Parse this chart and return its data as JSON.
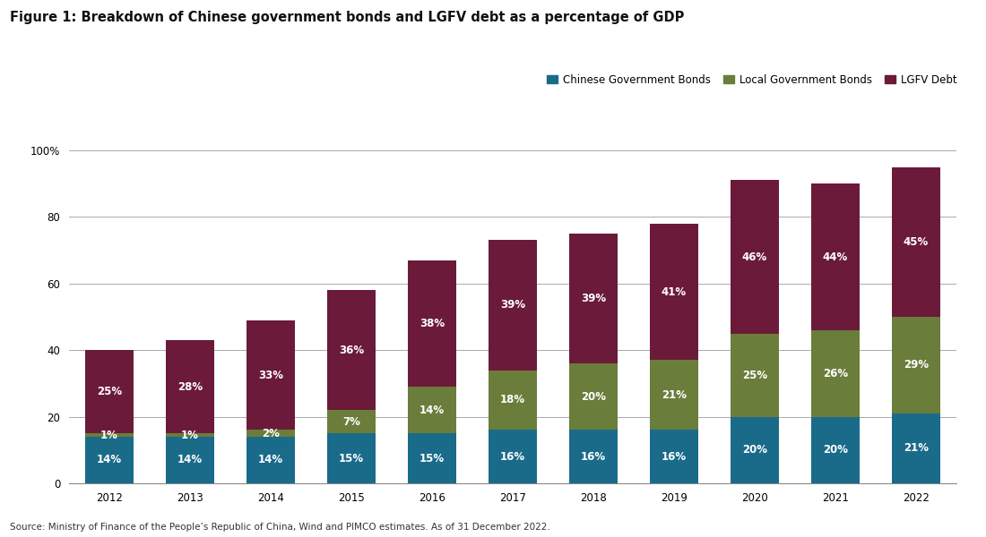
{
  "title": "Figure 1: Breakdown of Chinese government bonds and LGFV debt as a percentage of GDP",
  "source_text": "Source: Ministry of Finance of the People’s Republic of China, Wind and PIMCO estimates. As of 31 December 2022.",
  "years": [
    2012,
    2013,
    2014,
    2015,
    2016,
    2017,
    2018,
    2019,
    2020,
    2021,
    2022
  ],
  "cgb": [
    14,
    14,
    14,
    15,
    15,
    16,
    16,
    16,
    20,
    20,
    21
  ],
  "lgb": [
    1,
    1,
    2,
    7,
    14,
    18,
    20,
    21,
    25,
    26,
    29
  ],
  "lgfv": [
    25,
    28,
    33,
    36,
    38,
    39,
    39,
    41,
    46,
    44,
    45
  ],
  "cgb_color": "#1a6b8a",
  "lgb_color": "#6b7d3a",
  "lgfv_color": "#6b1a3a",
  "legend_labels": [
    "Chinese Government Bonds",
    "Local Government Bonds",
    "LGFV Debt"
  ],
  "ylim": [
    0,
    100
  ],
  "yticks": [
    0,
    20,
    40,
    60,
    80,
    100
  ],
  "yticklabels": [
    "0",
    "20",
    "40",
    "60",
    "80",
    "100%"
  ],
  "bar_width": 0.6,
  "label_fontsize": 8.5,
  "title_fontsize": 10.5,
  "source_fontsize": 7.5,
  "legend_fontsize": 8.5,
  "tick_fontsize": 8.5,
  "background_color": "#ffffff",
  "grid_color": "#aaaaaa"
}
